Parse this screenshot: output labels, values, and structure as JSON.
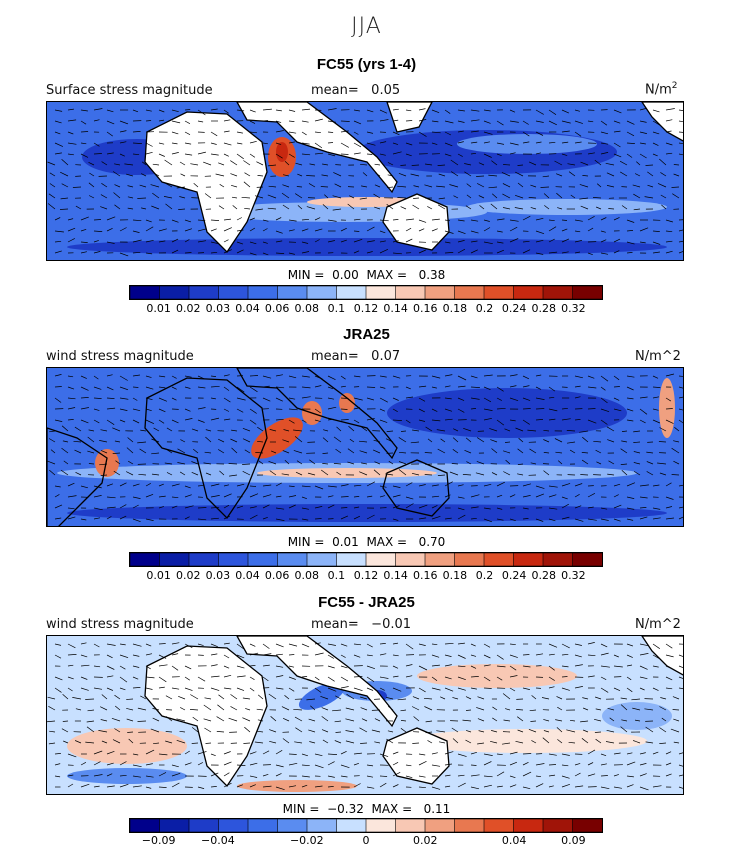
{
  "figure": {
    "season": "JJA"
  },
  "chart_data": [
    {
      "type": "heatmap",
      "title": "FC55 (yrs 1-4)",
      "field_label": "Surface stress magnitude",
      "mean_label": "mean=",
      "mean": "0.05",
      "units": "N/m",
      "units_sup": "2",
      "min_label": "MIN =",
      "min": "0.00",
      "max_label": "MAX =",
      "max": "0.38",
      "colorbar": {
        "colors": [
          "#00008b",
          "#0a1ea6",
          "#1e3cc8",
          "#2d55dc",
          "#3c6ee8",
          "#5a8cf0",
          "#8cb4f8",
          "#c8e0ff",
          "#fbe6dc",
          "#f8c8b4",
          "#f0a080",
          "#e87850",
          "#e05028",
          "#c82810",
          "#a01408",
          "#780000"
        ],
        "tick_labels": [
          "0.01",
          "0.02",
          "0.03",
          "0.04",
          "0.06",
          "0.08",
          "0.1",
          "0.12",
          "0.14",
          "0.16",
          "0.18",
          "0.2",
          "0.24",
          "0.28",
          "0.32"
        ]
      }
    },
    {
      "type": "heatmap",
      "title": "JRA25",
      "field_label": "wind stress magnitude",
      "mean_label": "mean=",
      "mean": "0.07",
      "units": "N/m^2",
      "min_label": "MIN =",
      "min": "0.01",
      "max_label": "MAX =",
      "max": "0.70",
      "colorbar": {
        "colors": [
          "#00008b",
          "#0a1ea6",
          "#1e3cc8",
          "#2d55dc",
          "#3c6ee8",
          "#5a8cf0",
          "#8cb4f8",
          "#c8e0ff",
          "#fbe6dc",
          "#f8c8b4",
          "#f0a080",
          "#e87850",
          "#e05028",
          "#c82810",
          "#a01408",
          "#780000"
        ],
        "tick_labels": [
          "0.01",
          "0.02",
          "0.03",
          "0.04",
          "0.06",
          "0.08",
          "0.1",
          "0.12",
          "0.14",
          "0.16",
          "0.18",
          "0.2",
          "0.24",
          "0.28",
          "0.32"
        ]
      }
    },
    {
      "type": "heatmap",
      "title": "FC55 - JRA25",
      "field_label": "wind stress magnitude",
      "mean_label": "mean=",
      "mean": "−0.01",
      "units": "N/m^2",
      "min_label": "MIN =",
      "min": "−0.32",
      "max_label": "MAX =",
      "max": "0.11",
      "colorbar": {
        "colors": [
          "#00008b",
          "#0a1ea6",
          "#1e3cc8",
          "#2d55dc",
          "#3c6ee8",
          "#5a8cf0",
          "#8cb4f8",
          "#c8e0ff",
          "#fbe6dc",
          "#f8c8b4",
          "#f0a080",
          "#e87850",
          "#e05028",
          "#c82810",
          "#a01408",
          "#780000"
        ],
        "tick_labels": [
          "−0.09",
          "−0.04",
          "−0.02",
          "0",
          "0.02",
          "0.04",
          "0.09"
        ]
      }
    }
  ]
}
